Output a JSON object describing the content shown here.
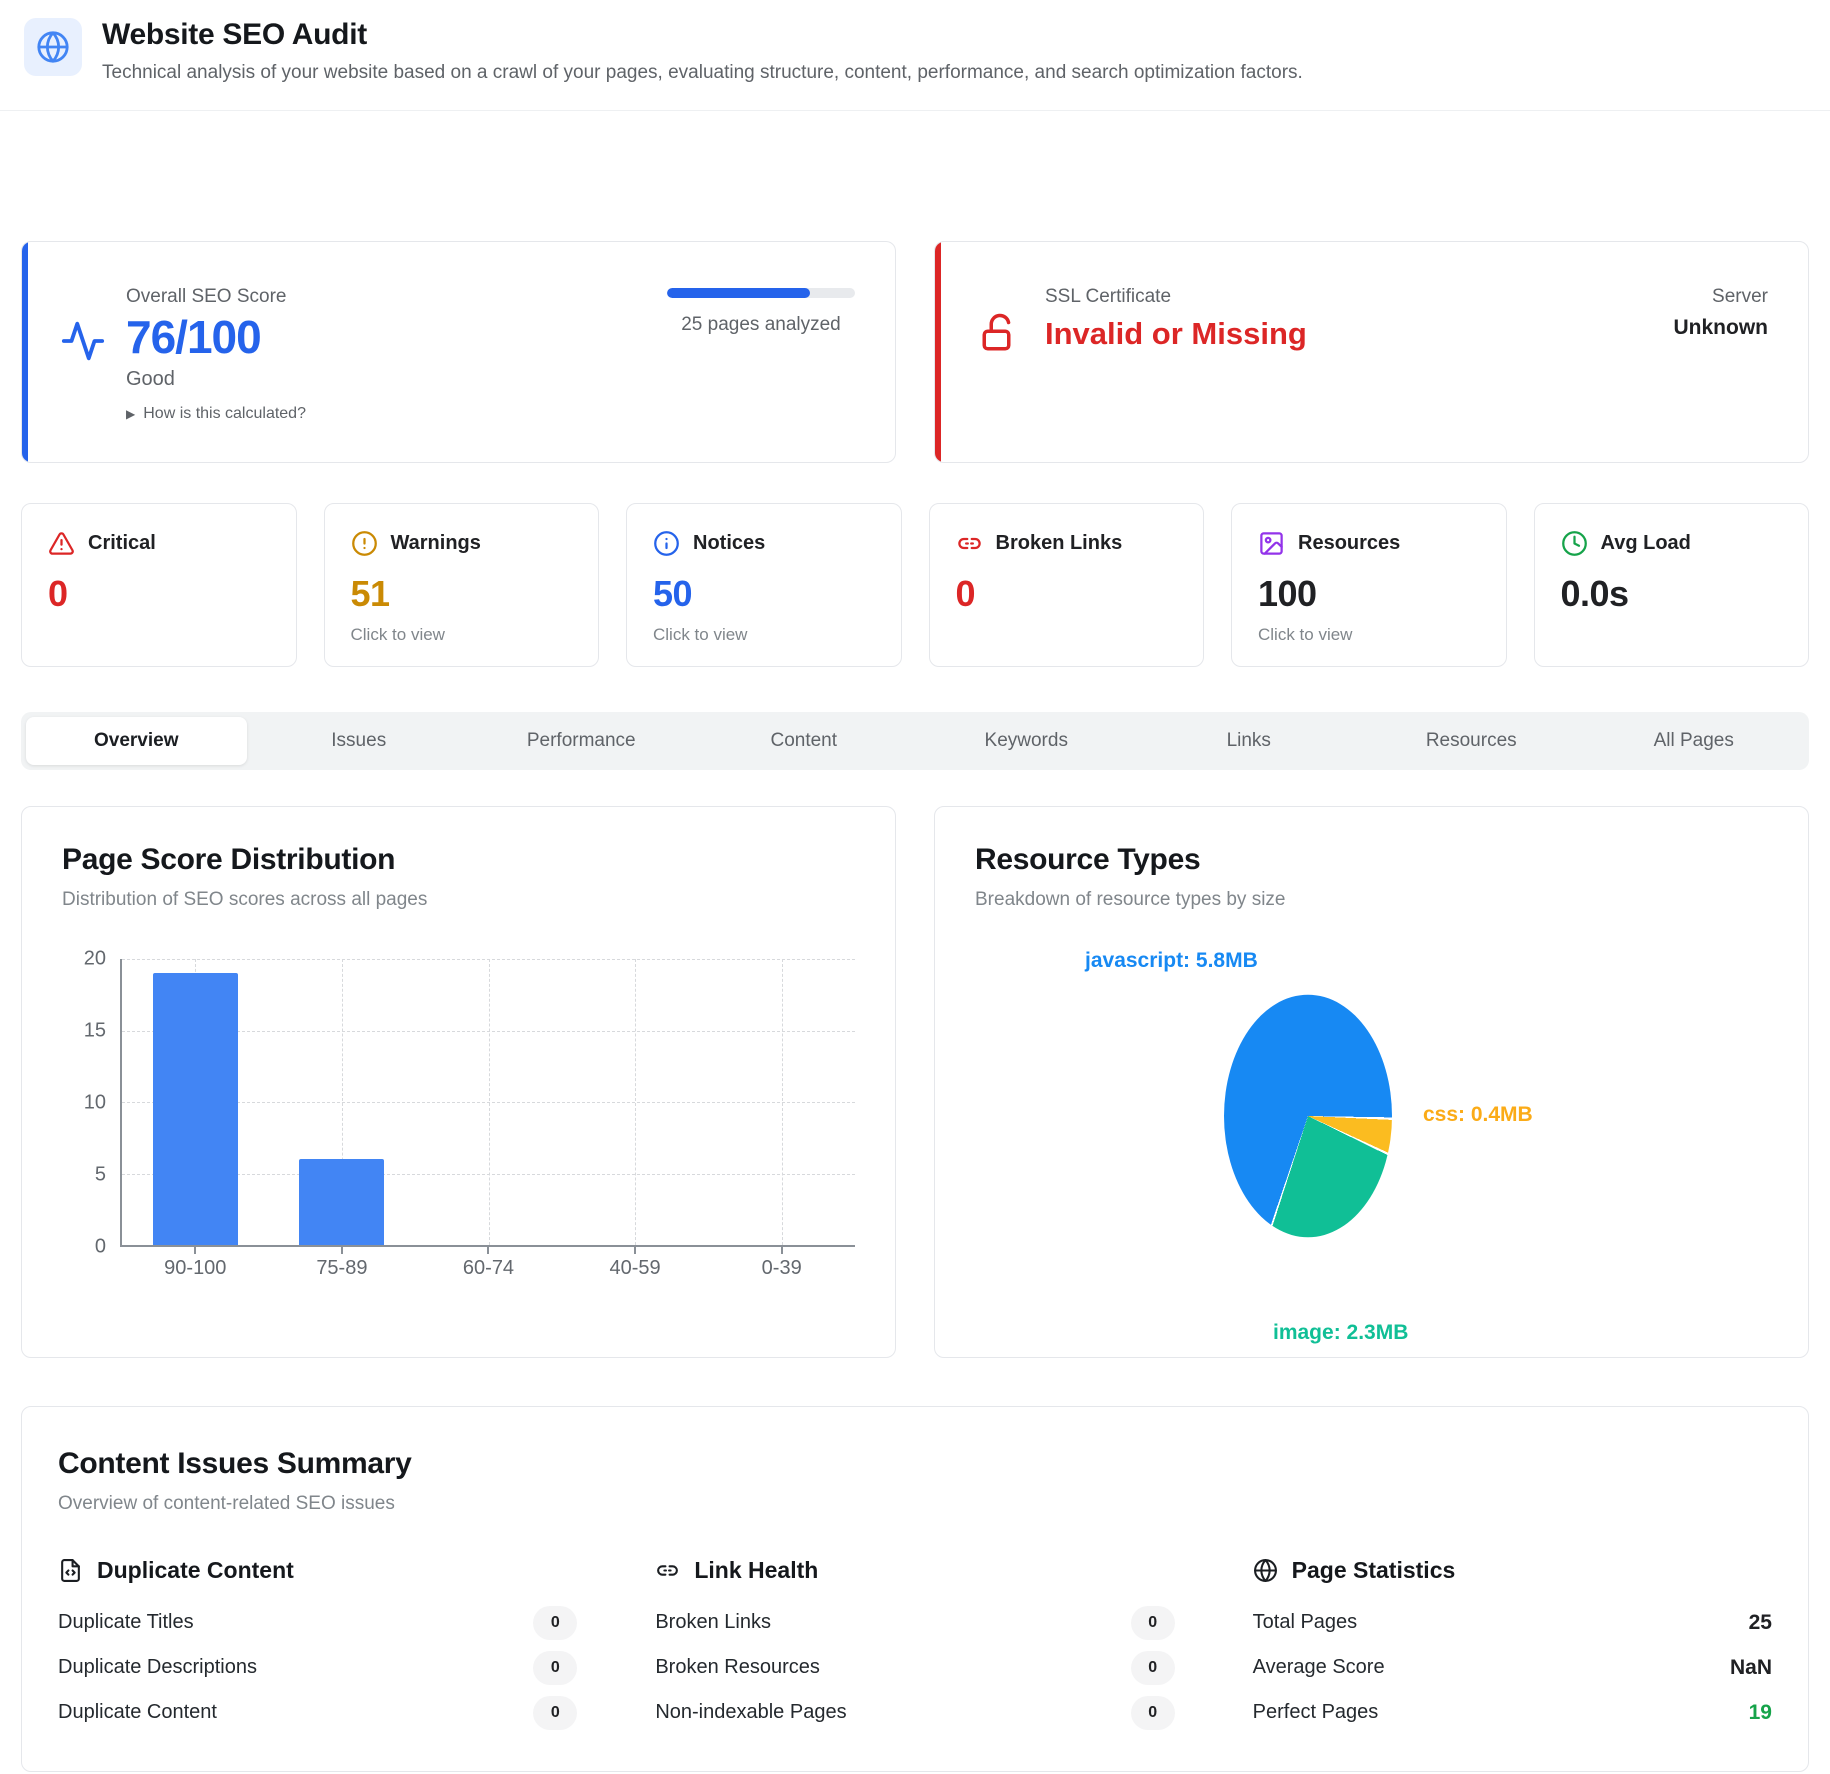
{
  "header": {
    "title": "Website SEO Audit",
    "subtitle": "Technical analysis of your website based on a crawl of your pages, evaluating structure, content, performance, and search optimization factors."
  },
  "score_card": {
    "label": "Overall SEO Score",
    "value": "76/100",
    "rating": "Good",
    "progress_pct": 76,
    "pages_analyzed": "25 pages analyzed",
    "how_link": "How is this calculated?",
    "accent_color": "#2563eb"
  },
  "ssl_card": {
    "label": "SSL Certificate",
    "value": "Invalid or Missing",
    "server_label": "Server",
    "server_value": "Unknown",
    "accent_color": "#dc2626"
  },
  "stats": [
    {
      "label": "Critical",
      "value": "0",
      "icon": "alert-triangle-icon",
      "color": "#dc2626",
      "click": ""
    },
    {
      "label": "Warnings",
      "value": "51",
      "icon": "alert-circle-icon",
      "color": "#ca8a04",
      "click": "Click to view"
    },
    {
      "label": "Notices",
      "value": "50",
      "icon": "info-circle-icon",
      "color": "#2563eb",
      "click": "Click to view"
    },
    {
      "label": "Broken Links",
      "value": "0",
      "icon": "broken-link-icon",
      "color": "#dc2626",
      "click": ""
    },
    {
      "label": "Resources",
      "value": "100",
      "icon": "image-icon",
      "color": "#202124",
      "click": "Click to view"
    },
    {
      "label": "Avg Load",
      "value": "0.0s",
      "icon": "clock-icon",
      "color": "#202124",
      "click": ""
    }
  ],
  "tabs": [
    {
      "label": "Overview",
      "active": true
    },
    {
      "label": "Issues",
      "active": false
    },
    {
      "label": "Performance",
      "active": false
    },
    {
      "label": "Content",
      "active": false
    },
    {
      "label": "Keywords",
      "active": false
    },
    {
      "label": "Links",
      "active": false
    },
    {
      "label": "Resources",
      "active": false
    },
    {
      "label": "All Pages",
      "active": false
    }
  ],
  "chart_data": [
    {
      "type": "bar",
      "title": "Page Score Distribution",
      "subtitle": "Distribution of SEO scores across all pages",
      "categories": [
        "90-100",
        "75-89",
        "60-74",
        "40-59",
        "0-39"
      ],
      "values": [
        19,
        6,
        0,
        0,
        0
      ],
      "ylim": [
        0,
        20
      ],
      "yticks": [
        0,
        5,
        10,
        15,
        20
      ],
      "bar_color": "#4285f4",
      "grid": true,
      "legend": "none"
    },
    {
      "type": "pie",
      "title": "Resource Types",
      "subtitle": "Breakdown of resource types by size",
      "slices": [
        {
          "label": "javascript",
          "size_mb": 5.8,
          "display": "javascript: 5.8MB",
          "color": "#1789f3"
        },
        {
          "label": "css",
          "size_mb": 0.4,
          "display": "css: 0.4MB",
          "color": "#fbbc20"
        },
        {
          "label": "image",
          "size_mb": 2.3,
          "display": "image: 2.3MB",
          "color": "#10bf96"
        }
      ],
      "start_angle_deg": 205,
      "legend": "labels-outside"
    }
  ],
  "summary": {
    "title": "Content Issues Summary",
    "subtitle": "Overview of content-related SEO issues",
    "columns": [
      {
        "icon": "file-code-icon",
        "title": "Duplicate Content",
        "rows": [
          {
            "label": "Duplicate Titles",
            "value": "0",
            "style": "badge"
          },
          {
            "label": "Duplicate Descriptions",
            "value": "0",
            "style": "badge"
          },
          {
            "label": "Duplicate Content",
            "value": "0",
            "style": "badge"
          }
        ]
      },
      {
        "icon": "broken-link-icon",
        "title": "Link Health",
        "rows": [
          {
            "label": "Broken Links",
            "value": "0",
            "style": "badge"
          },
          {
            "label": "Broken Resources",
            "value": "0",
            "style": "badge"
          },
          {
            "label": "Non-indexable Pages",
            "value": "0",
            "style": "badge"
          }
        ]
      },
      {
        "icon": "globe-icon",
        "title": "Page Statistics",
        "rows": [
          {
            "label": "Total Pages",
            "value": "25",
            "style": "plain"
          },
          {
            "label": "Average Score",
            "value": "NaN",
            "style": "plain"
          },
          {
            "label": "Perfect Pages",
            "value": "19",
            "style": "plain-green"
          }
        ]
      }
    ]
  }
}
